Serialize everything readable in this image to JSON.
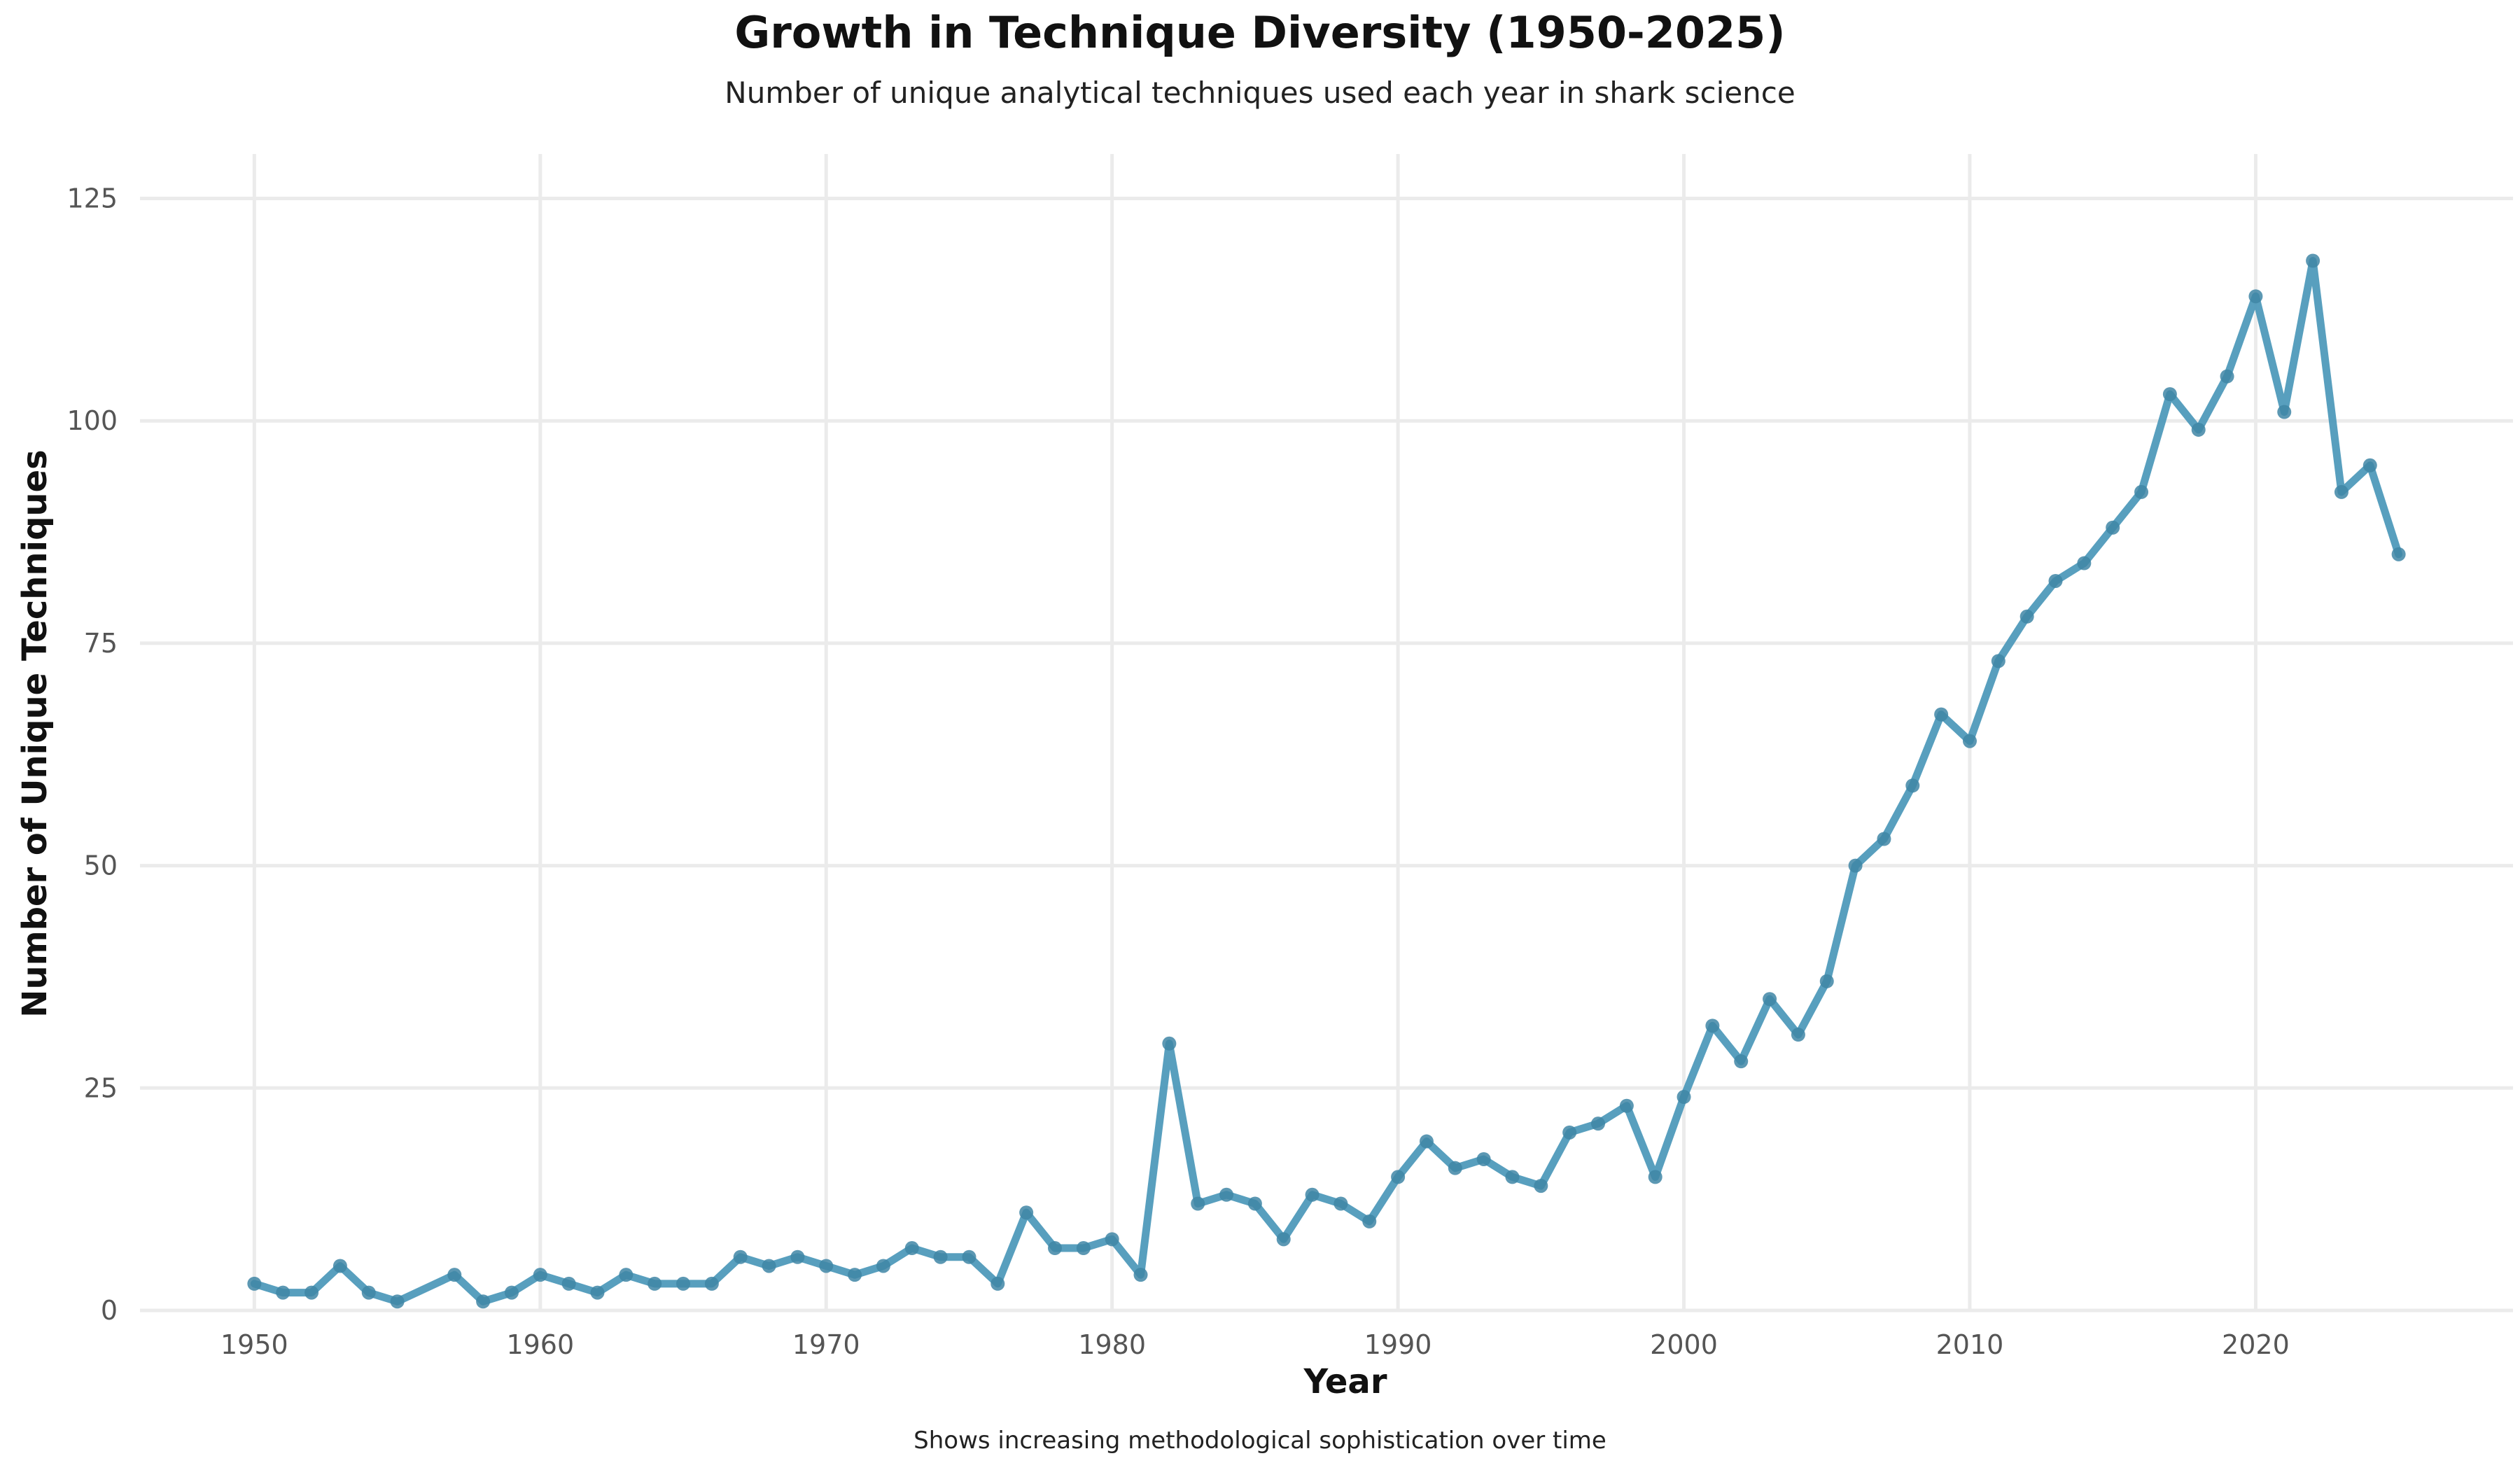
{
  "chart_data": {
    "type": "line",
    "title": "Growth in Technique Diversity (1950-2025)",
    "subtitle": "Number of unique analytical techniques used each year in shark science",
    "caption": "Shows increasing methodological sophistication over time",
    "xlabel": "Year",
    "ylabel": "Number of Unique Techniques",
    "xlim": [
      1946,
      2029
    ],
    "ylim": [
      0,
      130
    ],
    "x_ticks": [
      1950,
      1960,
      1970,
      1980,
      1990,
      2000,
      2010,
      2020
    ],
    "y_ticks": [
      0,
      25,
      50,
      75,
      100,
      125
    ],
    "grid": true,
    "line_color": "#4a97b8",
    "series": [
      {
        "x": [
          1950,
          1951,
          1952,
          1953,
          1954,
          1955,
          1957,
          1958,
          1959,
          1960,
          1961,
          1962,
          1963,
          1964,
          1965,
          1966,
          1967,
          1968,
          1969,
          1970,
          1971,
          1972,
          1973,
          1974,
          1975,
          1976,
          1977,
          1978,
          1979,
          1980,
          1981,
          1982,
          1983,
          1984,
          1985,
          1986,
          1987,
          1988,
          1989,
          1990,
          1991,
          1992,
          1993,
          1994,
          1995,
          1996,
          1997,
          1998,
          1999,
          2000,
          2001,
          2002,
          2003,
          2004,
          2005,
          2006,
          2007,
          2008,
          2009,
          2010,
          2011,
          2012,
          2013,
          2014,
          2015,
          2016,
          2017,
          2018,
          2019,
          2020,
          2021,
          2022,
          2023,
          2024,
          2025
        ],
        "values": [
          3,
          2,
          2,
          5,
          2,
          1,
          4,
          1,
          2,
          4,
          3,
          2,
          4,
          3,
          3,
          3,
          6,
          5,
          6,
          5,
          4,
          5,
          7,
          6,
          6,
          3,
          11,
          7,
          7,
          8,
          4,
          30,
          12,
          13,
          12,
          8,
          13,
          12,
          10,
          15,
          19,
          16,
          17,
          15,
          14,
          20,
          21,
          23,
          15,
          24,
          32,
          28,
          35,
          31,
          37,
          50,
          53,
          59,
          67,
          64,
          73,
          78,
          82,
          84,
          88,
          92,
          103,
          99,
          105,
          114,
          101,
          118,
          92,
          95,
          85
        ]
      }
    ]
  }
}
